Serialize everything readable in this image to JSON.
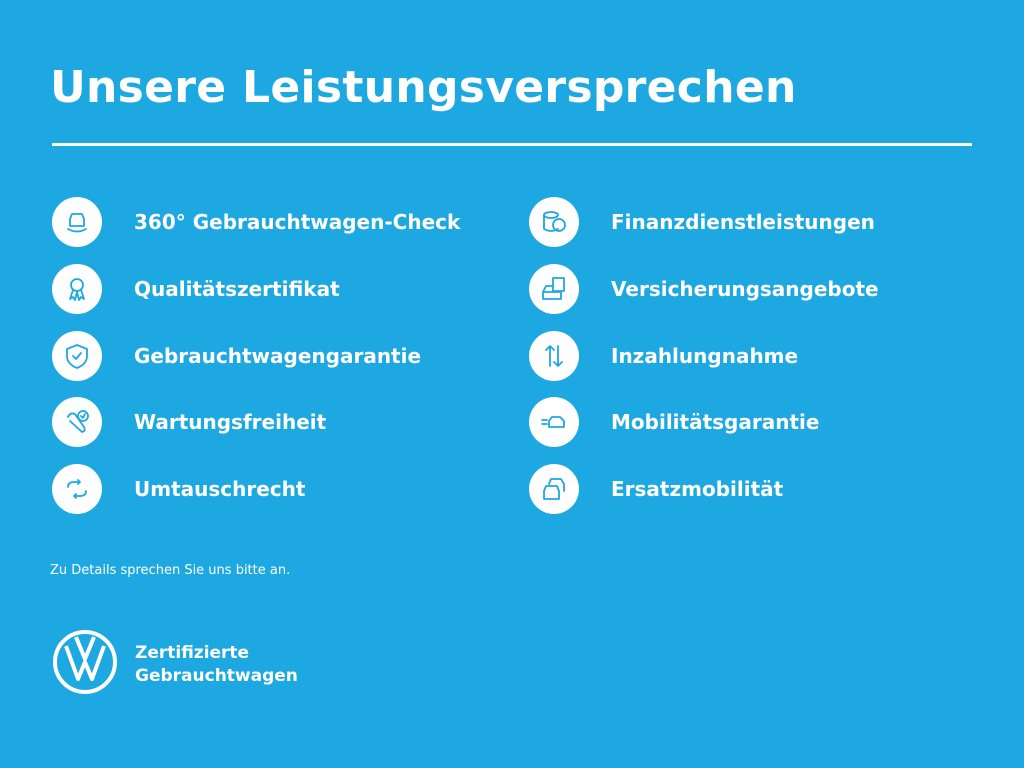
{
  "title": "Unsere Leistungsversprechen",
  "colors": {
    "background": "#1ea8e2",
    "foreground": "#ffffff",
    "icon": "#1ea8e2"
  },
  "left": [
    {
      "label": "360° Gebrauchtwagen-Check",
      "icon": "car-check-icon"
    },
    {
      "label": "Qualitätszertifikat",
      "icon": "award-ribbon-icon"
    },
    {
      "label": "Gebrauchtwagengarantie",
      "icon": "shield-check-icon"
    },
    {
      "label": "Wartungsfreiheit",
      "icon": "wrench-check-icon"
    },
    {
      "label": "Umtauschrecht",
      "icon": "exchange-arrows-icon"
    }
  ],
  "right": [
    {
      "label": "Finanzdienstleistungen",
      "icon": "coins-euro-icon"
    },
    {
      "label": "Versicherungsangebote",
      "icon": "car-document-icon"
    },
    {
      "label": "Inzahlungnahme",
      "icon": "up-down-arrows-icon"
    },
    {
      "label": "Mobilitätsgarantie",
      "icon": "moving-car-icon"
    },
    {
      "label": "Ersatzmobilität",
      "icon": "two-cars-icon"
    }
  ],
  "note": "Zu Details sprechen Sie uns bitte an.",
  "brand": {
    "line1": "Zertifizierte",
    "line2": "Gebrauchtwagen",
    "logo": "VW"
  }
}
